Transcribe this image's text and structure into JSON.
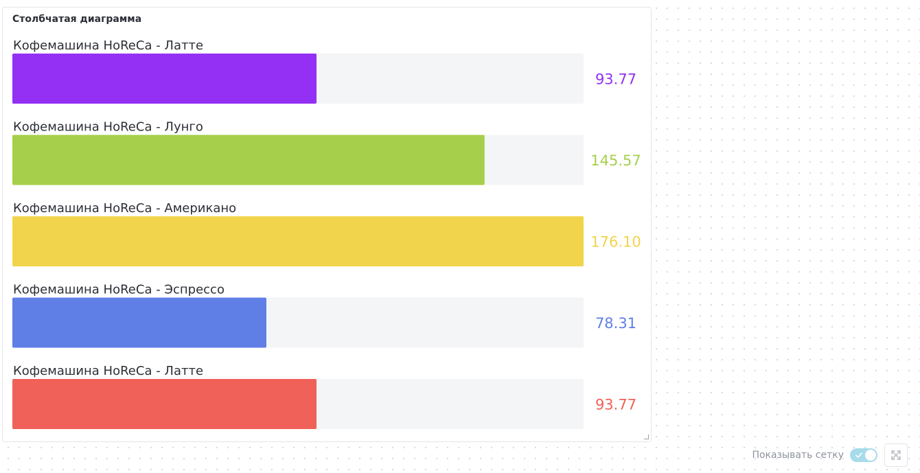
{
  "widget": {
    "title": "Столбчатая диаграмма"
  },
  "chart_data": {
    "type": "bar",
    "orientation": "horizontal",
    "xlim": [
      0,
      176.1
    ],
    "grid": false,
    "legend": "none",
    "categories": [
      "Кофемашина HoReCa - Латте",
      "Кофемашина HoReCa - Лунго",
      "Кофемашина HoReCa - Американо",
      "Кофемашина HoReCa - Эспрессо",
      "Кофемашина HoReCa - Латте"
    ],
    "values": [
      93.77,
      145.57,
      176.1,
      78.31,
      93.77
    ],
    "value_labels": [
      "93.77",
      "145.57",
      "176.10",
      "78.31",
      "93.77"
    ],
    "colors": [
      "#9430f4",
      "#a6cf4b",
      "#f1d44c",
      "#5f7fe6",
      "#f06159"
    ],
    "track_color": "#f4f5f7"
  },
  "footer": {
    "show_grid_label": "Показывать сетку",
    "show_grid_on": true
  }
}
